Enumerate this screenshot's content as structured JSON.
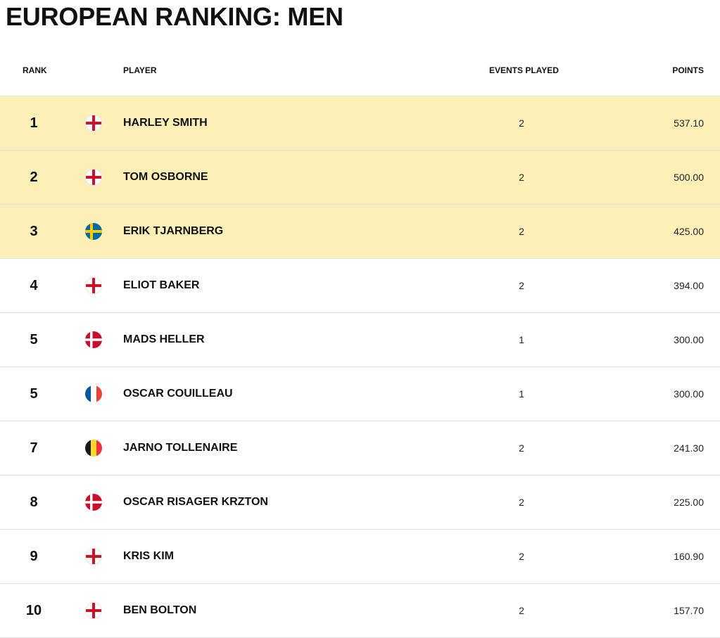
{
  "page": {
    "title": "EUROPEAN RANKING: MEN"
  },
  "table": {
    "headers": {
      "rank": "RANK",
      "player": "PLAYER",
      "events": "EVENTS PLAYED",
      "points": "POINTS"
    },
    "highlight_color": "#fcf0b8",
    "rows": [
      {
        "rank": "1",
        "flag": "england-flag-icon",
        "player": "HARLEY SMITH",
        "events": "2",
        "points": "537.10",
        "highlighted": true
      },
      {
        "rank": "2",
        "flag": "england-flag-icon",
        "player": "TOM OSBORNE",
        "events": "2",
        "points": "500.00",
        "highlighted": true
      },
      {
        "rank": "3",
        "flag": "sweden-flag-icon",
        "player": "ERIK TJARNBERG",
        "events": "2",
        "points": "425.00",
        "highlighted": true
      },
      {
        "rank": "4",
        "flag": "england-flag-icon",
        "player": "ELIOT BAKER",
        "events": "2",
        "points": "394.00",
        "highlighted": false
      },
      {
        "rank": "5",
        "flag": "denmark-flag-icon",
        "player": "MADS HELLER",
        "events": "1",
        "points": "300.00",
        "highlighted": false
      },
      {
        "rank": "5",
        "flag": "france-flag-icon",
        "player": "OSCAR COUILLEAU",
        "events": "1",
        "points": "300.00",
        "highlighted": false
      },
      {
        "rank": "7",
        "flag": "belgium-flag-icon",
        "player": "JARNO TOLLENAIRE",
        "events": "2",
        "points": "241.30",
        "highlighted": false
      },
      {
        "rank": "8",
        "flag": "denmark-flag-icon",
        "player": "OSCAR RISAGER KRZTON",
        "events": "2",
        "points": "225.00",
        "highlighted": false
      },
      {
        "rank": "9",
        "flag": "england-flag-icon",
        "player": "KRIS KIM",
        "events": "2",
        "points": "160.90",
        "highlighted": false
      },
      {
        "rank": "10",
        "flag": "england-flag-icon",
        "player": "BEN BOLTON",
        "events": "2",
        "points": "157.70",
        "highlighted": false
      }
    ]
  }
}
